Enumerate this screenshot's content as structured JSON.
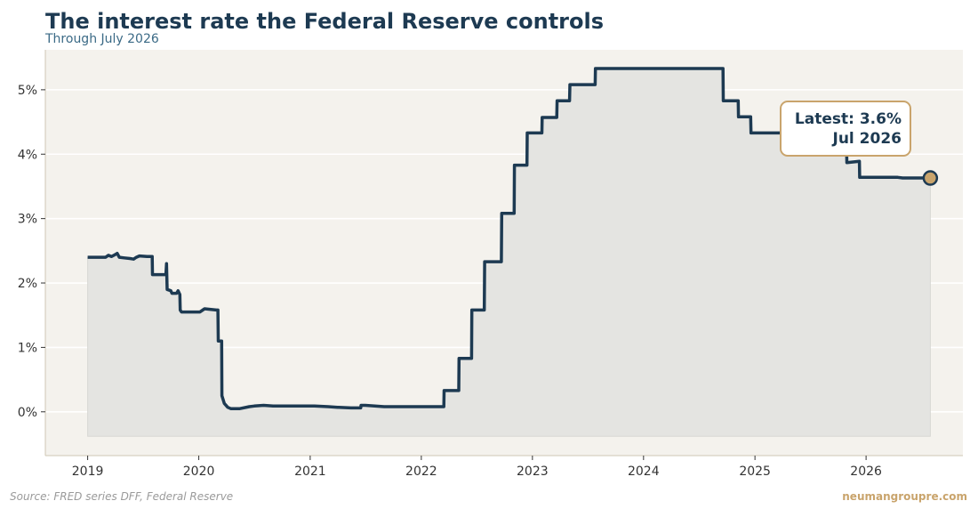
{
  "title": "The interest rate the Federal Reserve controls",
  "subtitle": "Through July 2026",
  "source": "Source: FRED series DFF, Federal Reserve",
  "brand": "neumangroupre.com",
  "colors": {
    "line": "#1d3a52",
    "area": "#e4e4e1",
    "plot_background": "#f4f2ed",
    "grid": "#ffffff",
    "marker": "#c9a46c",
    "callout_border": "#c9a46c",
    "brand": "#c9a46c"
  },
  "callout": {
    "line1": "Latest: 3.6%",
    "line2": "Jul 2026"
  },
  "chart_data": {
    "type": "line",
    "series": [
      {
        "points": [
          [
            "2019-01-01",
            2.4
          ],
          [
            "2019-03-01",
            2.4
          ],
          [
            "2019-03-10",
            2.43
          ],
          [
            "2019-03-20",
            2.41
          ],
          [
            "2019-04-01",
            2.44
          ],
          [
            "2019-04-08",
            2.46
          ],
          [
            "2019-04-15",
            2.4
          ],
          [
            "2019-05-01",
            2.39
          ],
          [
            "2019-05-20",
            2.38
          ],
          [
            "2019-06-01",
            2.37
          ],
          [
            "2019-06-10",
            2.4
          ],
          [
            "2019-06-20",
            2.42
          ],
          [
            "2019-07-15",
            2.41
          ],
          [
            "2019-08-01",
            2.41
          ],
          [
            "2019-08-02",
            2.13
          ],
          [
            "2019-09-15",
            2.13
          ],
          [
            "2019-09-17",
            2.3
          ],
          [
            "2019-09-19",
            1.9
          ],
          [
            "2019-10-01",
            1.88
          ],
          [
            "2019-10-05",
            1.84
          ],
          [
            "2019-10-20",
            1.84
          ],
          [
            "2019-10-25",
            1.88
          ],
          [
            "2019-10-31",
            1.82
          ],
          [
            "2019-11-01",
            1.58
          ],
          [
            "2019-11-05",
            1.55
          ],
          [
            "2019-12-31",
            1.55
          ],
          [
            "2020-01-05",
            1.55
          ],
          [
            "2020-01-20",
            1.6
          ],
          [
            "2020-02-28",
            1.58
          ],
          [
            "2020-03-04",
            1.58
          ],
          [
            "2020-03-05",
            1.1
          ],
          [
            "2020-03-16",
            1.1
          ],
          [
            "2020-03-17",
            0.25
          ],
          [
            "2020-03-25",
            0.13
          ],
          [
            "2020-04-05",
            0.07
          ],
          [
            "2020-04-15",
            0.05
          ],
          [
            "2020-05-15",
            0.05
          ],
          [
            "2020-06-15",
            0.08
          ],
          [
            "2020-07-01",
            0.09
          ],
          [
            "2020-08-01",
            0.1
          ],
          [
            "2020-09-01",
            0.09
          ],
          [
            "2020-12-31",
            0.09
          ],
          [
            "2021-01-15",
            0.09
          ],
          [
            "2021-03-01",
            0.08
          ],
          [
            "2021-04-01",
            0.07
          ],
          [
            "2021-05-15",
            0.06
          ],
          [
            "2021-06-16",
            0.06
          ],
          [
            "2021-06-17",
            0.1
          ],
          [
            "2021-07-01",
            0.1
          ],
          [
            "2021-08-01",
            0.09
          ],
          [
            "2021-09-01",
            0.08
          ],
          [
            "2022-03-16",
            0.08
          ],
          [
            "2022-03-17",
            0.33
          ],
          [
            "2022-05-04",
            0.33
          ],
          [
            "2022-05-05",
            0.83
          ],
          [
            "2022-06-15",
            0.83
          ],
          [
            "2022-06-16",
            1.58
          ],
          [
            "2022-07-27",
            1.58
          ],
          [
            "2022-07-28",
            2.33
          ],
          [
            "2022-09-21",
            2.33
          ],
          [
            "2022-09-22",
            3.08
          ],
          [
            "2022-11-02",
            3.08
          ],
          [
            "2022-11-03",
            3.83
          ],
          [
            "2022-12-14",
            3.83
          ],
          [
            "2022-12-15",
            4.33
          ],
          [
            "2023-02-01",
            4.33
          ],
          [
            "2023-02-02",
            4.57
          ],
          [
            "2023-03-22",
            4.57
          ],
          [
            "2023-03-23",
            4.83
          ],
          [
            "2023-05-03",
            4.83
          ],
          [
            "2023-05-04",
            5.08
          ],
          [
            "2023-07-26",
            5.08
          ],
          [
            "2023-07-27",
            5.33
          ],
          [
            "2024-09-18",
            5.33
          ],
          [
            "2024-09-19",
            4.83
          ],
          [
            "2024-11-07",
            4.83
          ],
          [
            "2024-11-08",
            4.58
          ],
          [
            "2024-12-18",
            4.58
          ],
          [
            "2024-12-19",
            4.33
          ],
          [
            "2025-09-17",
            4.33
          ],
          [
            "2025-09-18",
            4.08
          ],
          [
            "2025-10-29",
            4.08
          ],
          [
            "2025-10-30",
            3.87
          ],
          [
            "2025-12-10",
            3.89
          ],
          [
            "2025-12-11",
            3.64
          ],
          [
            "2026-04-15",
            3.64
          ],
          [
            "2026-05-01",
            3.63
          ],
          [
            "2026-07-31",
            3.63
          ]
        ]
      }
    ],
    "x_ticks": [
      "2019",
      "2020",
      "2021",
      "2022",
      "2023",
      "2024",
      "2025",
      "2026"
    ],
    "y_ticks": [
      "0%",
      "1%",
      "2%",
      "3%",
      "4%",
      "5%"
    ],
    "y_tick_values": [
      0,
      1,
      2,
      3,
      4,
      5
    ],
    "xlim": [
      "2018-08-15",
      "2026-11-15"
    ],
    "ylim": [
      -0.68,
      5.62
    ],
    "area_baseline": -0.38,
    "latest": {
      "date": "2026-07-31",
      "value": 3.63
    },
    "grid": true
  }
}
